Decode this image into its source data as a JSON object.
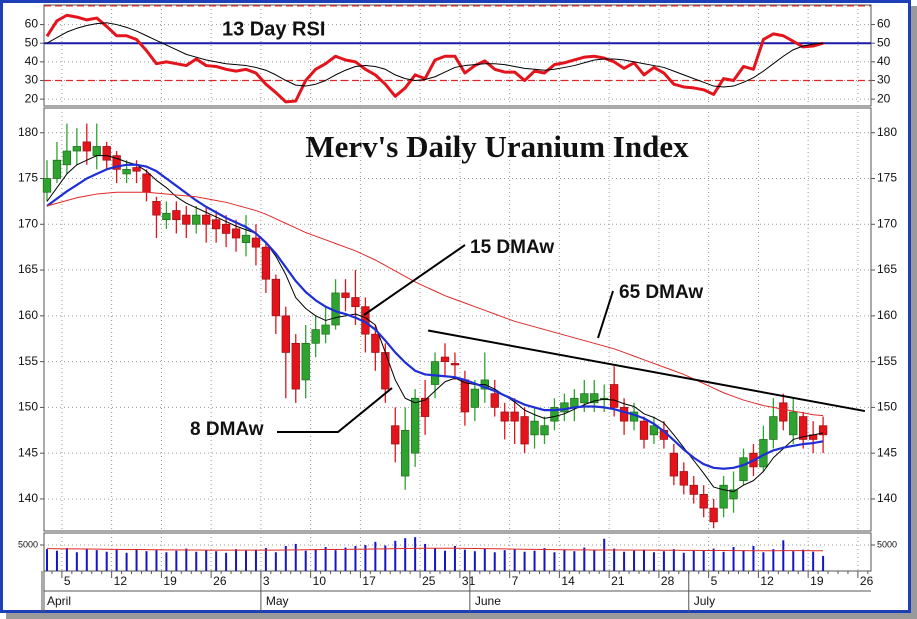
{
  "chart_data": {
    "type": "candlestick",
    "title": "Merv's Daily Uranium Index",
    "categories": [
      null,
      null,
      "5",
      null,
      null,
      null,
      null,
      "12",
      null,
      null,
      null,
      null,
      "19",
      null,
      null,
      null,
      null,
      "26",
      null,
      null,
      null,
      null,
      "3",
      null,
      null,
      null,
      null,
      "10",
      null,
      null,
      null,
      null,
      "17",
      null,
      null,
      null,
      null,
      null,
      "25",
      null,
      null,
      null,
      "31",
      null,
      null,
      null,
      null,
      "7",
      null,
      null,
      null,
      null,
      "14",
      null,
      null,
      null,
      null,
      "21",
      null,
      null,
      null,
      null,
      "28",
      null,
      null,
      null,
      null,
      "5",
      null,
      null,
      null,
      null,
      "12",
      null,
      null,
      null,
      null,
      "19",
      null,
      null,
      null,
      null,
      "26",
      null
    ],
    "months": [
      "April",
      null,
      null,
      null,
      null,
      null,
      null,
      null,
      null,
      null,
      null,
      null,
      null,
      null,
      null,
      null,
      null,
      null,
      null,
      null,
      null,
      null,
      "May",
      null,
      null,
      null,
      null,
      null,
      null,
      null,
      null,
      null,
      null,
      null,
      null,
      null,
      null,
      null,
      null,
      null,
      null,
      null,
      null,
      "June",
      null,
      null,
      null,
      null,
      null,
      null,
      null,
      null,
      null,
      null,
      null,
      null,
      null,
      null,
      null,
      null,
      null,
      null,
      null,
      null,
      null,
      "July",
      null,
      null,
      null,
      null,
      null,
      null,
      null,
      null,
      null,
      null,
      null,
      null,
      null,
      null,
      null,
      null,
      null,
      null
    ],
    "ylim": [
      136.5,
      182.7
    ],
    "yticks": [
      140,
      145,
      150,
      155,
      160,
      165,
      170,
      175,
      180
    ],
    "grid": true,
    "up_color": "#2fa32f",
    "down_color": "#e3141c",
    "open": [
      173.5,
      175,
      176.5,
      178,
      179,
      177.5,
      178.5,
      177.5,
      175.5,
      176.2,
      175.5,
      172.5,
      170.5,
      171.5,
      171,
      170,
      171,
      170.5,
      170,
      169.5,
      168,
      168.5,
      167.5,
      164,
      160,
      157,
      153,
      157,
      158,
      159,
      162.5,
      162,
      161,
      158,
      156,
      148,
      142.5,
      145,
      151,
      152.5,
      155.5,
      154.8,
      153,
      150,
      152,
      151.5,
      149.5,
      149.5,
      149,
      147,
      147,
      148.5,
      149.5,
      150,
      150.5,
      150.5,
      151,
      152.5,
      150,
      148.5,
      148.5,
      147,
      147.5,
      145,
      143,
      141.5,
      140.5,
      139,
      139,
      140,
      142,
      145,
      143.5,
      146.5,
      150.5,
      147,
      149,
      147,
      148,
      null,
      null,
      null,
      null,
      null
    ],
    "high": [
      177,
      179,
      181,
      180.5,
      181,
      181,
      179,
      178,
      177,
      177,
      176,
      173,
      172.5,
      172.5,
      172,
      172,
      172,
      171.5,
      171,
      170.5,
      171,
      170,
      168,
      164.5,
      161,
      158,
      159,
      160,
      161,
      164,
      164,
      165,
      162,
      159,
      157,
      150,
      150,
      152,
      153,
      156,
      157,
      156,
      154,
      153,
      156,
      153,
      150.5,
      151,
      150,
      150,
      149,
      151,
      151.5,
      152,
      153,
      153,
      152.5,
      154.5,
      151,
      150.5,
      149,
      149,
      148.5,
      146,
      144,
      142.5,
      141.5,
      140,
      142.5,
      143,
      145.5,
      146,
      148,
      151,
      151.5,
      151,
      149.5,
      148.5,
      149,
      null,
      null,
      null,
      null,
      null
    ],
    "low": [
      172.5,
      174.5,
      175.5,
      176.5,
      176.5,
      176,
      176,
      174.5,
      174.5,
      174.5,
      172.5,
      168.5,
      169.5,
      169,
      168.5,
      169,
      168,
      168,
      167.5,
      167,
      166.5,
      165.5,
      162.5,
      158,
      151,
      150.5,
      151,
      155.5,
      157,
      158.5,
      160.5,
      159,
      156,
      154,
      150.5,
      144,
      141,
      143.5,
      147,
      151,
      153.5,
      153,
      148,
      148.5,
      150.5,
      149,
      146.5,
      146,
      145,
      145.5,
      146,
      147.5,
      148.5,
      148.5,
      149.5,
      149.5,
      149.5,
      149,
      147,
      147.5,
      145.5,
      146,
      145.5,
      141.5,
      140.5,
      139.5,
      138,
      136.8,
      138,
      138.5,
      141.5,
      142.5,
      143,
      145.5,
      147.5,
      146,
      145.5,
      145,
      145,
      null,
      null,
      null,
      null,
      null
    ],
    "close": [
      175,
      177,
      178,
      178.5,
      178,
      178.5,
      177,
      176,
      176,
      175.8,
      173.5,
      171,
      171.2,
      170.5,
      170,
      171,
      170,
      169.5,
      169,
      168.5,
      168.8,
      167.5,
      164,
      160,
      156,
      152,
      157,
      158.5,
      159,
      162.5,
      162,
      161,
      158,
      156,
      152,
      146,
      147.5,
      151,
      149,
      155,
      155,
      154.7,
      149.5,
      152,
      153,
      150,
      148.5,
      148.5,
      146,
      148.5,
      148,
      150,
      150.5,
      151,
      151.5,
      151.5,
      151,
      150,
      148.5,
      149.5,
      146.5,
      148,
      146.5,
      142.5,
      141.5,
      140.5,
      139,
      137.5,
      141.5,
      141,
      144.5,
      143.5,
      146.5,
      149,
      148.5,
      149.5,
      146.5,
      146.5,
      147,
      null,
      null,
      null,
      null,
      null
    ],
    "series": [
      {
        "name": "8 DMAw",
        "color": "#000000",
        "values": [
          172.5,
          174,
          175.5,
          176.5,
          177,
          177.5,
          177.5,
          177.2,
          176.8,
          176.5,
          175.8,
          174.8,
          174,
          173,
          172.3,
          171.8,
          171.3,
          170.8,
          170.3,
          169.8,
          169.4,
          169,
          168,
          166.5,
          164.5,
          162,
          160.8,
          160,
          159.5,
          159.8,
          160,
          160.2,
          159.8,
          159,
          156,
          153,
          151,
          150.5,
          150.8,
          151.8,
          152.8,
          153.2,
          152.7,
          152.5,
          152.5,
          152,
          151.3,
          150.6,
          149.7,
          149.2,
          148.8,
          149,
          149.3,
          149.8,
          150.3,
          150.7,
          150.9,
          150.8,
          150.4,
          150.1,
          149.3,
          148.9,
          148.3,
          147,
          145.6,
          144.2,
          142.8,
          141.3,
          141,
          140.8,
          141.5,
          142,
          143,
          144.5,
          145.5,
          146.5,
          146.8,
          147,
          147.2,
          null,
          null,
          null,
          null,
          null
        ]
      },
      {
        "name": "15 DMAw",
        "color": "#1f2fd6",
        "values": [
          172,
          172.8,
          173.6,
          174.3,
          175,
          175.5,
          176,
          176.3,
          176.5,
          176.5,
          176.3,
          175.8,
          175,
          174.2,
          173.4,
          172.6,
          171.9,
          171.3,
          170.7,
          170.2,
          169.7,
          169,
          168,
          166.8,
          165.3,
          163.8,
          162.6,
          161.7,
          161,
          160.5,
          160.2,
          159.8,
          159.3,
          158.5,
          157.3,
          156,
          154.9,
          154,
          153.6,
          153.5,
          153.4,
          153.3,
          153,
          152.6,
          152.2,
          151.8,
          151.3,
          150.8,
          150.3,
          150,
          149.7,
          149.7,
          149.8,
          150,
          150.1,
          150.1,
          150,
          149.8,
          149.5,
          149.2,
          148.8,
          148.2,
          147.4,
          146.4,
          145.4,
          144.5,
          143.8,
          143.4,
          143.3,
          143.4,
          143.7,
          144.2,
          144.8,
          145.3,
          145.6,
          145.8,
          146,
          146.1,
          146.3,
          null,
          null,
          null,
          null,
          null
        ]
      },
      {
        "name": "65 DMAw",
        "color": "#e02828",
        "values": [
          172,
          172.3,
          172.6,
          172.9,
          173.1,
          173.3,
          173.4,
          173.5,
          173.5,
          173.5,
          173.5,
          173.4,
          173.3,
          173.2,
          173.1,
          173,
          172.8,
          172.6,
          172.4,
          172.1,
          171.8,
          171.5,
          171.1,
          170.6,
          170.1,
          169.6,
          169.1,
          168.7,
          168.3,
          167.9,
          167.5,
          167.1,
          166.6,
          166.1,
          165.5,
          164.9,
          164.3,
          163.7,
          163.2,
          162.7,
          162.2,
          161.8,
          161.4,
          161,
          160.6,
          160.2,
          159.8,
          159.4,
          159.1,
          158.8,
          158.5,
          158.2,
          157.9,
          157.6,
          157.3,
          157,
          156.7,
          156.4,
          156,
          155.6,
          155.2,
          154.8,
          154.4,
          154,
          153.6,
          153.1,
          152.6,
          152.1,
          151.6,
          151.2,
          150.8,
          150.5,
          150.2,
          150,
          149.8,
          149.6,
          149.4,
          149.2,
          149.1,
          null,
          null,
          null,
          null,
          null
        ]
      }
    ],
    "trend_line": {
      "x": [
        38.3,
        82.2
      ],
      "y": [
        158.4,
        149.6
      ],
      "color": "#000000"
    },
    "rsi": {
      "title": "13 Day RSI",
      "ylim": [
        16.3,
        70.5
      ],
      "yticks": [
        20,
        30,
        40,
        50,
        60
      ],
      "levels": [
        {
          "value": 70,
          "color": "#e02828",
          "dashed": true
        },
        {
          "value": 50,
          "color": "#1a1aa8",
          "dashed": false
        },
        {
          "value": 30,
          "color": "#e02828",
          "dashed": true
        }
      ],
      "series": [
        {
          "color": "#e3141c",
          "values": [
            53.7,
            62,
            65,
            64,
            62.5,
            63.5,
            59,
            54,
            54,
            52,
            46,
            39,
            40,
            39,
            38,
            41.5,
            38,
            37.5,
            36,
            35,
            36,
            34,
            28,
            23.5,
            18.5,
            19,
            30,
            36,
            39,
            43,
            41,
            40,
            36,
            33,
            28,
            21.5,
            26,
            33,
            31,
            41,
            43,
            43,
            34,
            38,
            40.5,
            36,
            34.5,
            34.5,
            30,
            35,
            34,
            38.5,
            39.5,
            41,
            42.5,
            43,
            42,
            40,
            36.5,
            39.5,
            33,
            37,
            34,
            28,
            26.5,
            26,
            25,
            22.5,
            31,
            30,
            37.5,
            36,
            52,
            55,
            54,
            51,
            48,
            48.5,
            50,
            null,
            null,
            null,
            null,
            null
          ]
        },
        {
          "color": "#000000",
          "values": [
            50,
            53,
            56,
            58,
            59.5,
            60.5,
            61,
            60,
            58.5,
            56.5,
            54,
            51.5,
            49,
            46.5,
            44,
            42.5,
            41,
            40,
            39,
            38.5,
            38,
            37,
            35.5,
            33,
            30,
            27.5,
            27,
            28,
            30,
            33,
            35.5,
            37.5,
            38,
            37.5,
            36,
            33,
            31,
            30,
            30.5,
            32,
            34.5,
            37,
            38,
            38.5,
            39,
            39,
            38.5,
            37.5,
            36.5,
            36,
            35.5,
            36,
            37,
            38,
            39.5,
            41,
            41.5,
            41.5,
            41,
            40,
            39,
            38,
            37,
            35,
            33,
            31,
            29,
            27,
            26.5,
            27,
            29,
            31.5,
            35,
            39,
            43,
            46.5,
            48.5,
            49.5,
            50,
            null,
            null,
            null,
            null,
            null
          ]
        }
      ]
    },
    "volume": {
      "ylim": [
        0,
        7300
      ],
      "yticks": [
        5000
      ],
      "color": "#1414c8",
      "values": [
        4200,
        3900,
        4400,
        3600,
        4300,
        4000,
        3700,
        4100,
        3500,
        4200,
        3800,
        4000,
        3600,
        3900,
        4300,
        3700,
        4000,
        3800,
        3500,
        4200,
        3900,
        4100,
        4400,
        3600,
        4800,
        5200,
        3900,
        4200,
        4600,
        4000,
        4500,
        4800,
        5000,
        5600,
        4900,
        5800,
        6300,
        6500,
        5200,
        4400,
        3900,
        4800,
        4100,
        3800,
        4300,
        3600,
        4000,
        4200,
        3700,
        3900,
        4400,
        3600,
        4100,
        3800,
        4500,
        4000,
        6200,
        4300,
        3700,
        3900,
        4100,
        3600,
        3800,
        4200,
        3500,
        3900,
        4000,
        4300,
        3700,
        4600,
        3900,
        4800,
        3600,
        4200,
        5900,
        3800,
        4100,
        3700,
        2900,
        null,
        null,
        null,
        null,
        null
      ],
      "average": {
        "color": "#e02828",
        "values": [
          4300,
          4280,
          4260,
          4240,
          4220,
          4200,
          4180,
          4160,
          4140,
          4120,
          4100,
          4080,
          4060,
          4050,
          4040,
          4030,
          4020,
          4010,
          4000,
          4000,
          4000,
          4000,
          4010,
          4020,
          4040,
          4060,
          4080,
          4100,
          4120,
          4140,
          4160,
          4180,
          4200,
          4230,
          4260,
          4290,
          4320,
          4350,
          4370,
          4380,
          4380,
          4370,
          4350,
          4330,
          4300,
          4270,
          4240,
          4210,
          4180,
          4150,
          4120,
          4100,
          4080,
          4060,
          4050,
          4040,
          4040,
          4040,
          4030,
          4020,
          4010,
          4000,
          3990,
          3980,
          3970,
          3960,
          3950,
          3940,
          3930,
          3920,
          3910,
          3900,
          3900,
          3900,
          3910,
          3910,
          3910,
          3900,
          3900,
          null,
          null,
          null,
          null,
          null
        ]
      }
    }
  }
}
